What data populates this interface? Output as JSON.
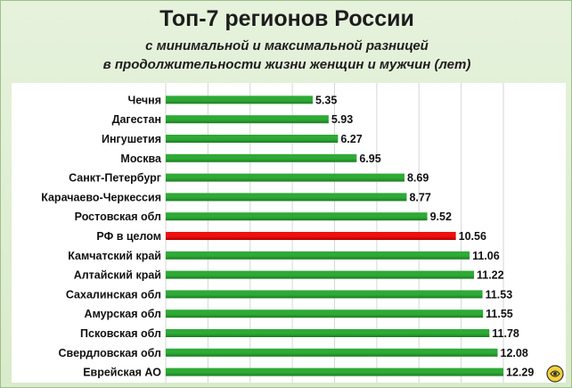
{
  "chart_data": {
    "type": "bar",
    "orientation": "horizontal",
    "title": "Топ-7 регионов России",
    "subtitle_line1": "с минимальной и максимальной разницей",
    "subtitle_line2": "в продолжительности жизни женщин и мужчин (лет)",
    "categories": [
      "Чечня",
      "Дагестан",
      "Ингушетия",
      "Москва",
      "Санкт-Петербург",
      "Карачаево-Черкессия",
      "Ростовская обл",
      "РФ в целом",
      "Камчатский край",
      "Алтайский край",
      "Сахалинская обл",
      "Амурская обл",
      "Псковская обл",
      "Свердловская обл",
      "Еврейская АО"
    ],
    "values": [
      5.35,
      5.93,
      6.27,
      6.95,
      8.69,
      8.77,
      9.52,
      10.56,
      11.06,
      11.22,
      11.53,
      11.55,
      11.78,
      12.08,
      12.29
    ],
    "value_labels": [
      "5.35",
      "5.93",
      "6.27",
      "6.95",
      "8.69",
      "8.77",
      "9.52",
      "10.56",
      "11.06",
      "11.22",
      "11.53",
      "11.55",
      "11.78",
      "12.08",
      "12.29"
    ],
    "highlight_category": "РФ в целом",
    "xlim": [
      0,
      12.29
    ],
    "grid": true,
    "legend": "none"
  },
  "colors": {
    "bar": "#2eaa36",
    "bar_dark": "#1c7c22",
    "highlight": "#ee1111",
    "highlight_dark": "#b00000",
    "grid": "#d6d6d6"
  },
  "corner_icon": "watermark-logo-icon"
}
